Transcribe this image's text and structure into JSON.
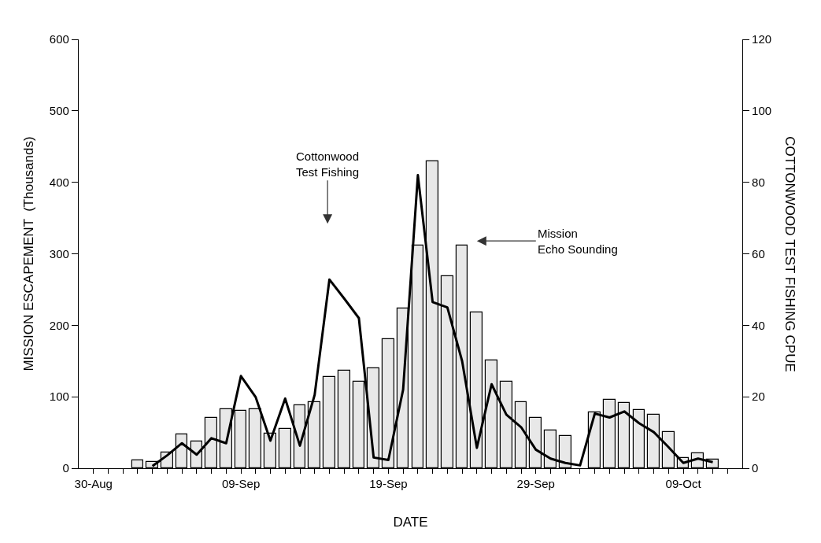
{
  "chart_data": {
    "type": "bar",
    "xlabel": "DATE",
    "ylabel": "MISSION ESCAPEMENT  (Thousands)",
    "y2label": "COTTONWOOD TEST FISHING CPUE",
    "x": [
      "--09-02",
      "--09-03",
      "--09-04",
      "--09-05",
      "--09-06",
      "--09-07",
      "--09-08",
      "--09-09",
      "--09-10",
      "--09-11",
      "--09-12",
      "--09-13",
      "--09-14",
      "--09-15",
      "--09-16",
      "--09-17",
      "--09-18",
      "--09-19",
      "--09-20",
      "--09-21",
      "--09-22",
      "--09-23",
      "--09-24",
      "--09-25",
      "--09-26",
      "--09-27",
      "--09-28",
      "--09-29",
      "--09-30",
      "--10-01",
      "--10-02",
      "--10-03",
      "--10-04",
      "--10-05",
      "--10-06",
      "--10-07",
      "--10-08",
      "--10-09",
      "--10-10",
      "--10-11"
    ],
    "series": [
      {
        "color": "#e8e8e8",
        "values": [
          11,
          9,
          22,
          47,
          37,
          70,
          83,
          80,
          83,
          48,
          55,
          88,
          92,
          128,
          137,
          121,
          140,
          181,
          223,
          312,
          429,
          269,
          312,
          218,
          151,
          121,
          93,
          71,
          53,
          45,
          null,
          78,
          96,
          91,
          81,
          75,
          51,
          14,
          21,
          12
        ]
      },
      {
        "type": "line",
        "axis": "y2",
        "color": "#000000",
        "values": [
          null,
          0.6,
          3.6,
          7,
          3.8,
          8.4,
          7,
          25.8,
          19.9,
          7.7,
          19.5,
          6.3,
          20.5,
          52.8,
          47.5,
          42,
          3,
          2.3,
          22,
          82,
          46.5,
          45,
          30,
          5.7,
          23.5,
          15,
          11.5,
          5.2,
          2.7,
          1.5,
          0.8,
          15.3,
          14.2,
          15.9,
          12.6,
          10.1,
          5.9,
          1.5,
          2.7,
          1.7
        ]
      }
    ],
    "xlim": [
      "--08-29",
      "--10-13"
    ],
    "xticks": [
      {
        "value": "--08-30",
        "label": "30-Aug"
      },
      {
        "value": "--08-31",
        "label": null
      },
      {
        "value": "--09-01",
        "label": null
      },
      {
        "value": "--09-02",
        "label": null
      },
      {
        "value": "--09-03",
        "label": null
      },
      {
        "value": "--09-04",
        "label": null
      },
      {
        "value": "--09-05",
        "label": null
      },
      {
        "value": "--09-06",
        "label": null
      },
      {
        "value": "--09-07",
        "label": null
      },
      {
        "value": "--09-08",
        "label": null
      },
      {
        "value": "--09-09",
        "label": "09-Sep"
      },
      {
        "value": "--09-10",
        "label": null
      },
      {
        "value": "--09-11",
        "label": null
      },
      {
        "value": "--09-12",
        "label": null
      },
      {
        "value": "--09-13",
        "label": null
      },
      {
        "value": "--09-14",
        "label": null
      },
      {
        "value": "--09-15",
        "label": null
      },
      {
        "value": "--09-16",
        "label": null
      },
      {
        "value": "--09-17",
        "label": null
      },
      {
        "value": "--09-18",
        "label": null
      },
      {
        "value": "--09-19",
        "label": "19-Sep"
      },
      {
        "value": "--09-20",
        "label": null
      },
      {
        "value": "--09-21",
        "label": null
      },
      {
        "value": "--09-22",
        "label": null
      },
      {
        "value": "--09-23",
        "label": null
      },
      {
        "value": "--09-24",
        "label": null
      },
      {
        "value": "--09-25",
        "label": null
      },
      {
        "value": "--09-26",
        "label": null
      },
      {
        "value": "--09-27",
        "label": null
      },
      {
        "value": "--09-28",
        "label": null
      },
      {
        "value": "--09-29",
        "label": "29-Sep"
      },
      {
        "value": "--09-30",
        "label": null
      },
      {
        "value": "--10-01",
        "label": null
      },
      {
        "value": "--10-02",
        "label": null
      },
      {
        "value": "--10-03",
        "label": null
      },
      {
        "value": "--10-04",
        "label": null
      },
      {
        "value": "--10-05",
        "label": null
      },
      {
        "value": "--10-06",
        "label": null
      },
      {
        "value": "--10-07",
        "label": null
      },
      {
        "value": "--10-08",
        "label": null
      },
      {
        "value": "--10-09",
        "label": "09-Oct"
      },
      {
        "value": "--10-10",
        "label": null
      },
      {
        "value": "--10-11",
        "label": null
      },
      {
        "value": "--10-12",
        "label": null
      }
    ],
    "ylim": [
      0,
      600
    ],
    "yticks": [
      0,
      100,
      200,
      300,
      400,
      500,
      600
    ],
    "y2lim": [
      0,
      120
    ],
    "y2ticks": [
      0,
      20,
      40,
      60,
      80,
      100,
      120
    ],
    "annotations": [
      "Cottonwood\nTest Fishing",
      "Mission\nEcho Sounding"
    ]
  }
}
